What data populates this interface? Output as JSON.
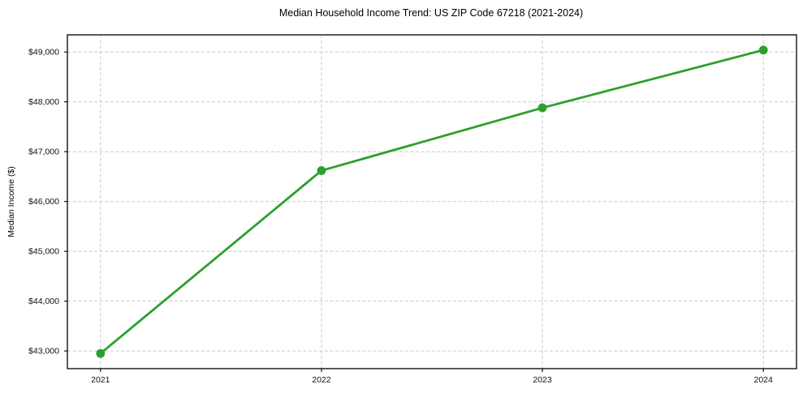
{
  "page": {
    "background_color": "#ffffff"
  },
  "chart_data": {
    "type": "line",
    "title": "Median Household Income Trend: US ZIP Code 67218 (2021-2024)",
    "xlabel": "",
    "ylabel": "Median Income ($)",
    "x": [
      2021,
      2022,
      2023,
      2024
    ],
    "series": [
      {
        "color": "#2ca02c",
        "marker": "circle",
        "values": [
          42950,
          46620,
          47880,
          49040
        ]
      }
    ],
    "xlim": [
      2020.85,
      2024.15
    ],
    "ylim": [
      42645,
      49345
    ],
    "x_ticks": [
      {
        "v": 2021,
        "label": "2021"
      },
      {
        "v": 2022,
        "label": "2022"
      },
      {
        "v": 2023,
        "label": "2023"
      },
      {
        "v": 2024,
        "label": "2024"
      }
    ],
    "y_ticks": [
      {
        "v": 43000,
        "label": "$43,000"
      },
      {
        "v": 44000,
        "label": "$44,000"
      },
      {
        "v": 45000,
        "label": "$45,000"
      },
      {
        "v": 46000,
        "label": "$46,000"
      },
      {
        "v": 47000,
        "label": "$47,000"
      },
      {
        "v": 48000,
        "label": "$48,000"
      },
      {
        "v": 49000,
        "label": "$49,000"
      }
    ],
    "grid": {
      "show": true,
      "style": "dashed",
      "color": "#c9c9c9"
    },
    "frame_color": "#000000",
    "legend": "none"
  }
}
